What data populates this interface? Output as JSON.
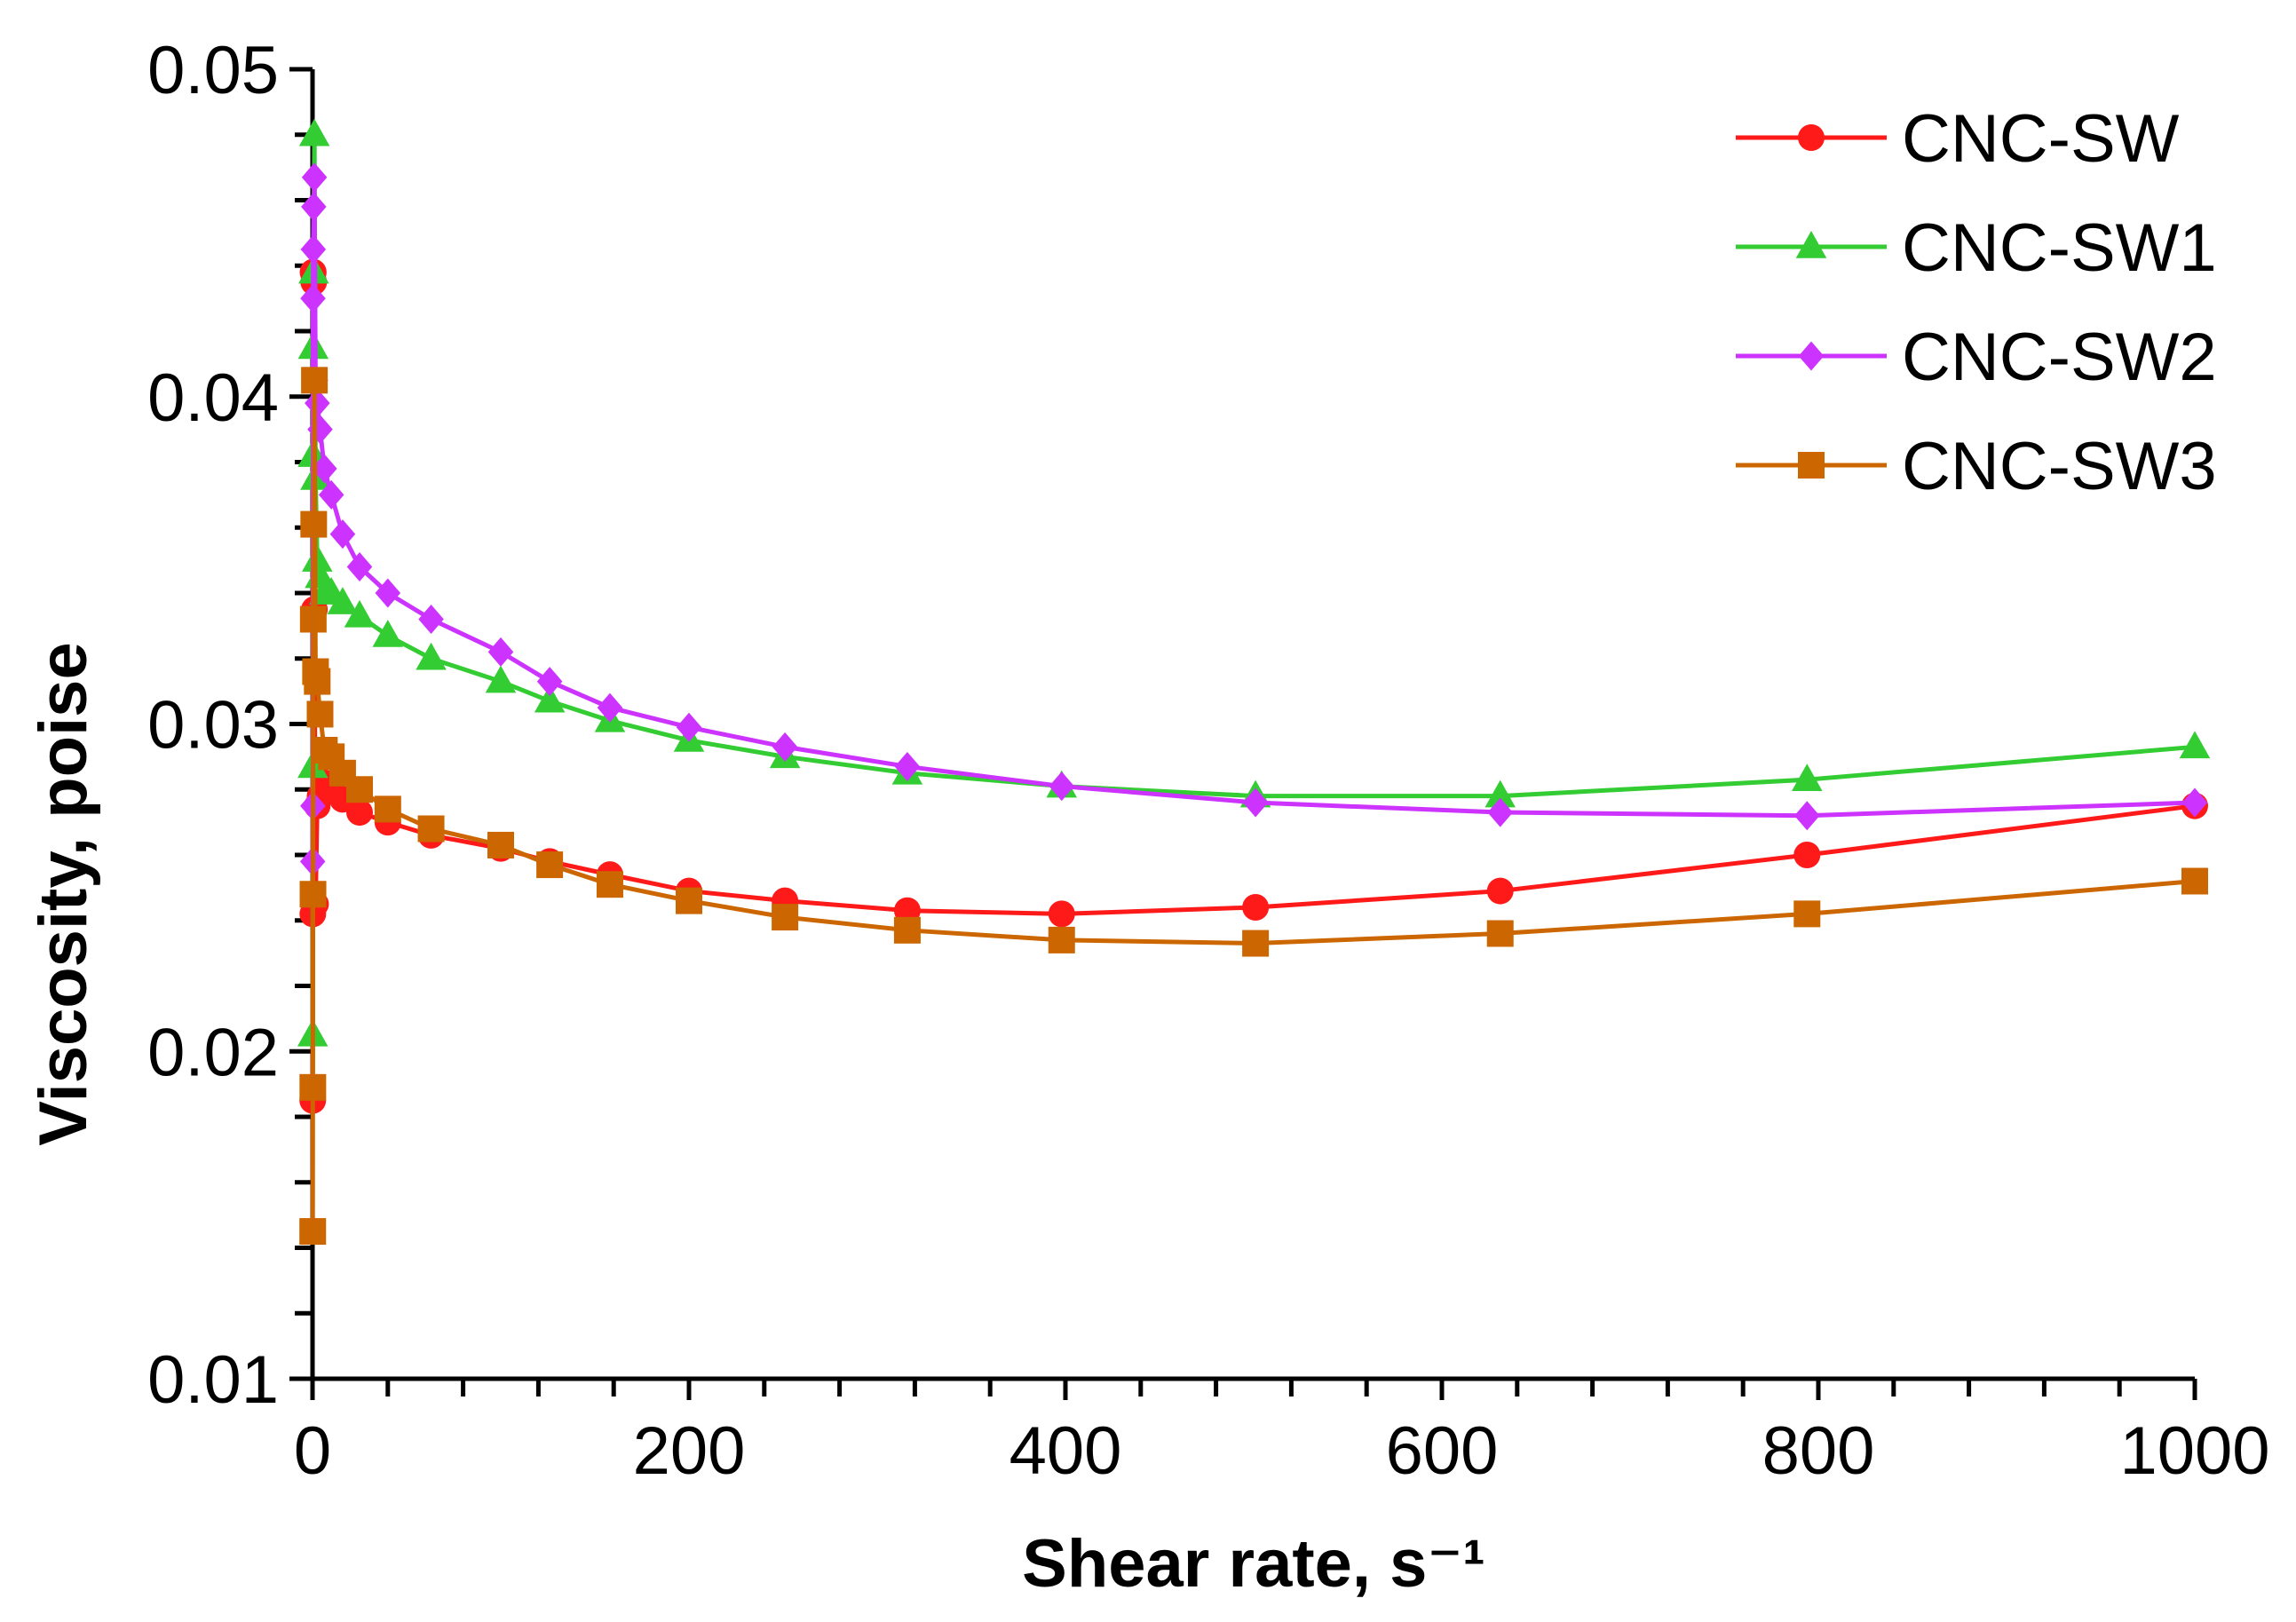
{
  "chart_data": {
    "type": "line",
    "title": "",
    "xlabel": "Shear rate, s⁻¹",
    "ylabel": "Viscosity, poise",
    "xlim": [
      0,
      1000
    ],
    "ylim": [
      0.01,
      0.05
    ],
    "xticks": [
      0,
      200,
      400,
      600,
      800,
      1000
    ],
    "xtick_labels": [
      "0",
      "200",
      "400",
      "600",
      "800",
      "1000"
    ],
    "yticks": [
      0.01,
      0.02,
      0.03,
      0.04,
      0.05
    ],
    "ytick_labels": [
      "0.01",
      "0.02",
      "0.03",
      "0.04",
      "0.05"
    ],
    "grid": false,
    "legend_position": "top-right",
    "series": [
      {
        "name": "CNC-SW",
        "color": "#ff1a1a",
        "marker": "circle",
        "x": [
          0.1,
          0.16,
          0.25,
          0.4,
          0.63,
          1,
          1.6,
          2.5,
          4,
          6.3,
          10,
          16,
          25,
          40,
          63,
          100,
          126,
          158,
          200,
          251,
          316,
          398,
          501,
          631,
          794,
          1000
        ],
        "y": [
          0.0185,
          0.0242,
          0.0438,
          0.0438,
          0.0435,
          0.0335,
          0.0245,
          0.0275,
          0.0278,
          0.0282,
          0.0281,
          0.0277,
          0.0273,
          0.027,
          0.0266,
          0.0262,
          0.0258,
          0.0254,
          0.0249,
          0.0246,
          0.0243,
          0.0242,
          0.0244,
          0.0249,
          0.026,
          0.0275
        ]
      },
      {
        "name": "CNC-SW1",
        "color": "#33cc33",
        "marker": "triangle",
        "x": [
          0.1,
          0.16,
          0.25,
          0.4,
          0.63,
          1,
          1.6,
          2.5,
          4,
          6.3,
          10,
          16,
          25,
          40,
          63,
          100,
          126,
          158,
          200,
          251,
          316,
          398,
          501,
          631,
          794,
          1000
        ],
        "y": [
          0.0205,
          0.0287,
          0.0382,
          0.0415,
          0.0438,
          0.048,
          0.0375,
          0.035,
          0.0345,
          0.034,
          0.034,
          0.0337,
          0.0333,
          0.0327,
          0.032,
          0.0313,
          0.0307,
          0.0301,
          0.0295,
          0.029,
          0.0285,
          0.0281,
          0.0278,
          0.0278,
          0.0283,
          0.0293
        ]
      },
      {
        "name": "CNC-SW2",
        "color": "#cc33ff",
        "marker": "diamond",
        "x": [
          0.1,
          0.16,
          0.25,
          0.4,
          0.63,
          1,
          1.6,
          2.5,
          4,
          6.3,
          10,
          16,
          25,
          40,
          63,
          100,
          126,
          158,
          200,
          251,
          316,
          398,
          501,
          631,
          794,
          1000
        ],
        "y": [
          0.0258,
          0.0275,
          0.043,
          0.0445,
          0.0458,
          0.0467,
          0.0405,
          0.0398,
          0.039,
          0.0378,
          0.037,
          0.0358,
          0.0348,
          0.034,
          0.0332,
          0.0322,
          0.0313,
          0.0305,
          0.0299,
          0.0293,
          0.0287,
          0.0281,
          0.0276,
          0.0273,
          0.0272,
          0.0276
        ]
      },
      {
        "name": "CNC-SW3",
        "color": "#cc6600",
        "marker": "square",
        "x": [
          0.1,
          0.16,
          0.25,
          0.4,
          0.63,
          1,
          1.6,
          2.5,
          4,
          6.3,
          10,
          16,
          25,
          40,
          63,
          100,
          126,
          158,
          200,
          251,
          316,
          398,
          501,
          631,
          794,
          1000
        ],
        "y": [
          0.0145,
          0.0189,
          0.0248,
          0.0332,
          0.0361,
          0.0405,
          0.0316,
          0.0313,
          0.0303,
          0.0292,
          0.029,
          0.0285,
          0.028,
          0.0274,
          0.0268,
          0.0263,
          0.0257,
          0.0251,
          0.0246,
          0.0241,
          0.0237,
          0.0234,
          0.0233,
          0.0236,
          0.0242,
          0.0252
        ]
      }
    ]
  }
}
